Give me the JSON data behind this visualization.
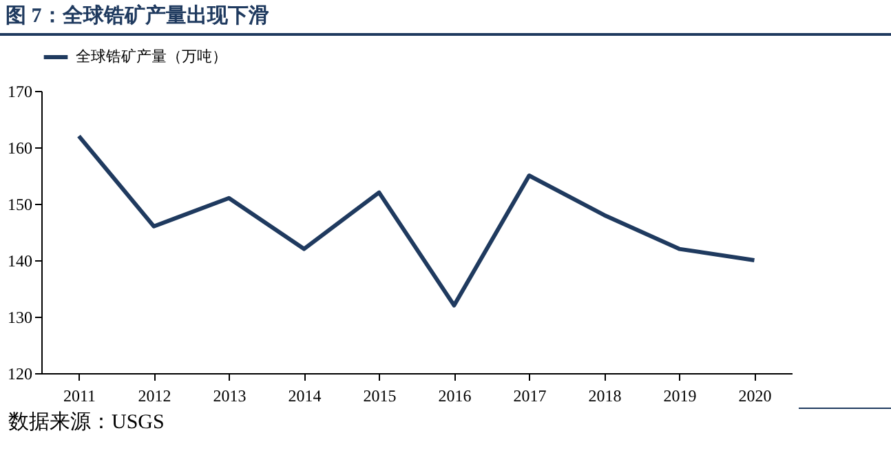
{
  "chart_data": {
    "type": "line",
    "title": "图 7：全球锆矿产量出现下滑",
    "categories": [
      "2011",
      "2012",
      "2013",
      "2014",
      "2015",
      "2016",
      "2017",
      "2018",
      "2019",
      "2020"
    ],
    "series": [
      {
        "name": "全球锆矿产量（万吨）",
        "color": "#1f3a5f",
        "values": [
          162,
          146,
          151,
          142,
          152,
          132,
          155,
          148,
          142,
          140
        ]
      }
    ],
    "ylim": [
      120,
      170
    ],
    "yticks": [
      120,
      130,
      140,
      150,
      160,
      170
    ],
    "grid": false,
    "legend": "top",
    "marker": "none",
    "line_style": "solid",
    "annotations": [
      "数据来源：USGS"
    ]
  }
}
